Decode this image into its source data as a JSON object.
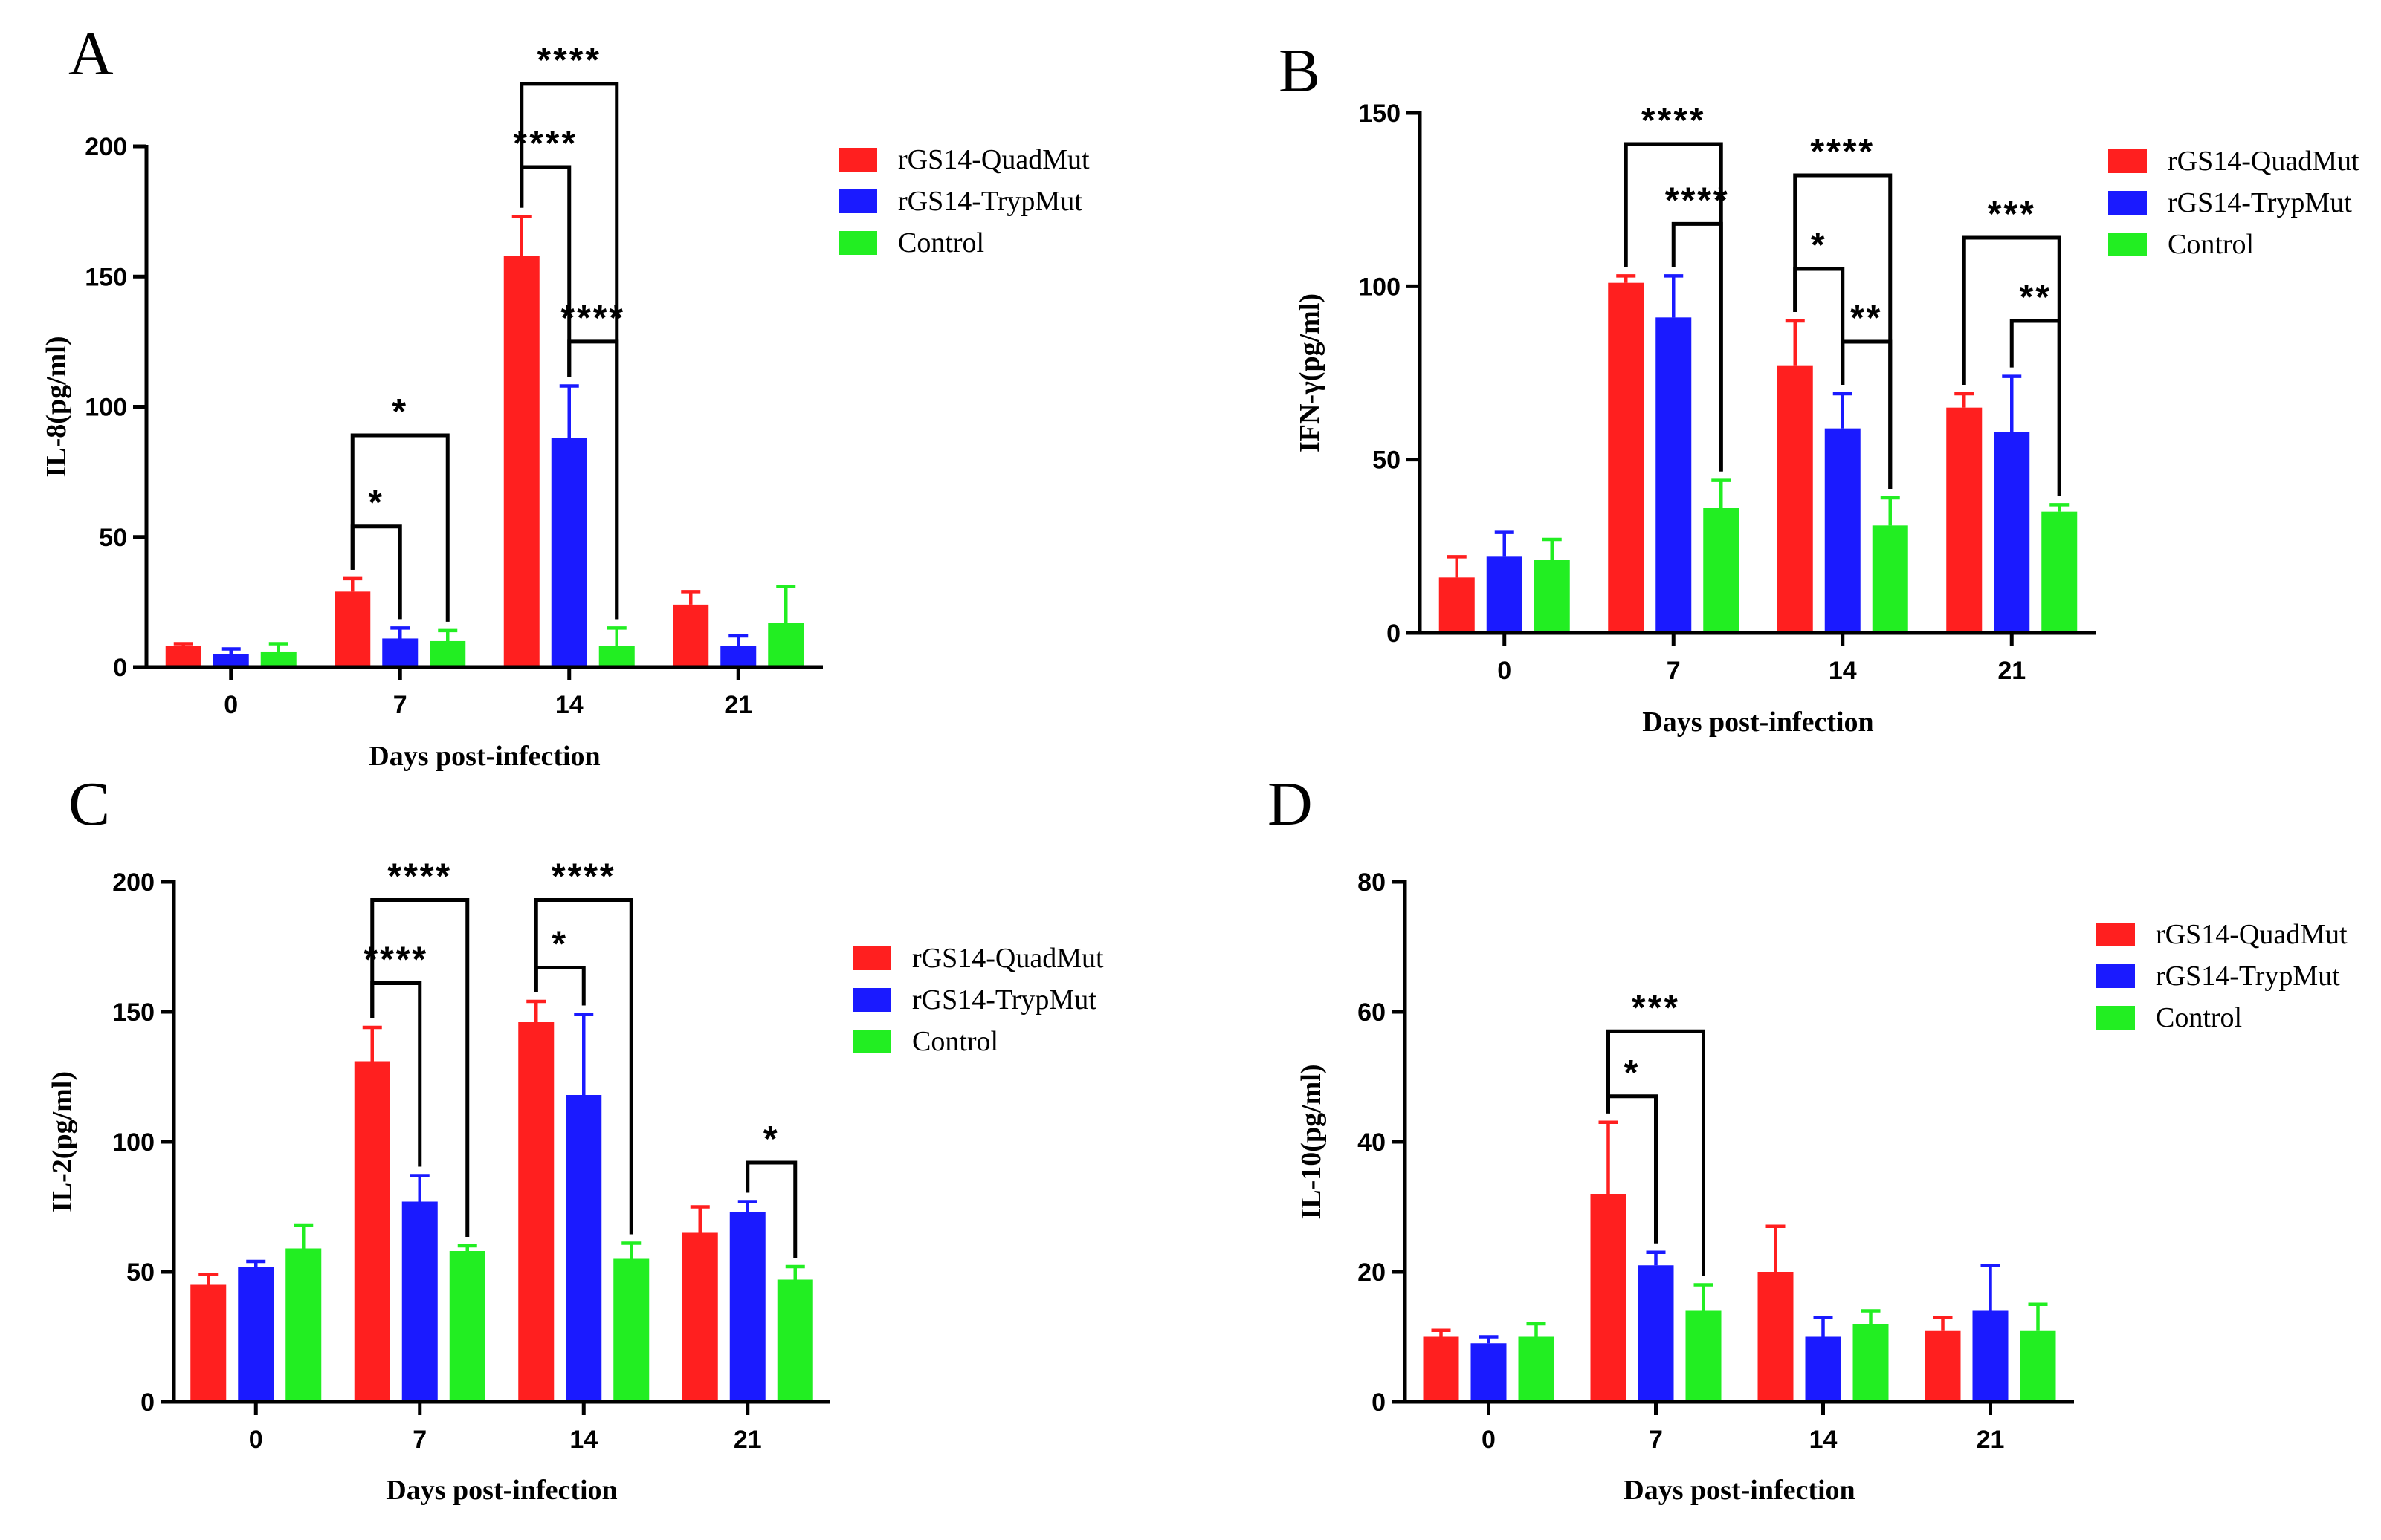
{
  "legend": [
    "rGS14-QuadMut",
    "rGS14-TrypMut",
    "Control"
  ],
  "colors": [
    "#ff1f1f",
    "#1a1aff",
    "#22ee22"
  ],
  "chart_data": [
    {
      "panel": "A",
      "type": "bar",
      "ylabel": "IL-8(pg/ml)",
      "xlabel": "Days post-infection",
      "categories": [
        "0",
        "7",
        "14",
        "21"
      ],
      "ylim": [
        0,
        200
      ],
      "yticks": [
        0,
        50,
        100,
        150,
        200
      ],
      "series": [
        {
          "name": "rGS14-QuadMut",
          "values": [
            8,
            29,
            158,
            24
          ],
          "errors": [
            1,
            5,
            15,
            5
          ]
        },
        {
          "name": "rGS14-TrypMut",
          "values": [
            5,
            11,
            88,
            8
          ],
          "errors": [
            2,
            4,
            20,
            4
          ]
        },
        {
          "name": "Control",
          "values": [
            6,
            10,
            8,
            17
          ],
          "errors": [
            3,
            4,
            7,
            14
          ]
        }
      ],
      "significance": [
        {
          "group": 1,
          "from": 0,
          "to": 1,
          "label": "*",
          "top": 54
        },
        {
          "group": 1,
          "from": 0,
          "to": 2,
          "label": "*",
          "top": 89
        },
        {
          "group": 2,
          "from": 0,
          "to": 1,
          "label": "****",
          "top": 192
        },
        {
          "group": 2,
          "from": 1,
          "to": 2,
          "label": "****",
          "top": 125
        },
        {
          "group": 2,
          "from": 0,
          "to": 2,
          "label": "****",
          "top": 224
        }
      ]
    },
    {
      "panel": "B",
      "type": "bar",
      "ylabel": "IFN-γ(pg/ml)",
      "xlabel": "Days post-infection",
      "categories": [
        "0",
        "7",
        "14",
        "21"
      ],
      "ylim": [
        0,
        150
      ],
      "yticks": [
        0,
        50,
        100,
        150
      ],
      "series": [
        {
          "name": "rGS14-QuadMut",
          "values": [
            16,
            101,
            77,
            65
          ],
          "errors": [
            6,
            2,
            13,
            4
          ]
        },
        {
          "name": "rGS14-TrypMut",
          "values": [
            22,
            91,
            59,
            58
          ],
          "errors": [
            7,
            12,
            10,
            16
          ]
        },
        {
          "name": "Control",
          "values": [
            21,
            36,
            31,
            35
          ],
          "errors": [
            6,
            8,
            8,
            2
          ]
        }
      ],
      "significance": [
        {
          "group": 1,
          "from": 0,
          "to": 2,
          "label": "****",
          "top": 141
        },
        {
          "group": 1,
          "from": 1,
          "to": 2,
          "label": "****",
          "top": 118
        },
        {
          "group": 2,
          "from": 0,
          "to": 1,
          "label": "*",
          "top": 105
        },
        {
          "group": 2,
          "from": 1,
          "to": 2,
          "label": "**",
          "top": 84
        },
        {
          "group": 2,
          "from": 0,
          "to": 2,
          "label": "****",
          "top": 132
        },
        {
          "group": 3,
          "from": 0,
          "to": 2,
          "label": "***",
          "top": 114
        },
        {
          "group": 3,
          "from": 1,
          "to": 2,
          "label": "**",
          "top": 90
        }
      ]
    },
    {
      "panel": "C",
      "type": "bar",
      "ylabel": "IL-2(pg/ml)",
      "xlabel": "Days post-infection",
      "categories": [
        "0",
        "7",
        "14",
        "21"
      ],
      "ylim": [
        0,
        200
      ],
      "yticks": [
        0,
        50,
        100,
        150,
        200
      ],
      "series": [
        {
          "name": "rGS14-QuadMut",
          "values": [
            45,
            131,
            146,
            65
          ],
          "errors": [
            4,
            13,
            8,
            10
          ]
        },
        {
          "name": "rGS14-TrypMut",
          "values": [
            52,
            77,
            118,
            73
          ],
          "errors": [
            2,
            10,
            31,
            4
          ]
        },
        {
          "name": "Control",
          "values": [
            59,
            58,
            55,
            47
          ],
          "errors": [
            9,
            2,
            6,
            5
          ]
        }
      ],
      "significance": [
        {
          "group": 1,
          "from": 0,
          "to": 1,
          "label": "****",
          "top": 161
        },
        {
          "group": 1,
          "from": 0,
          "to": 2,
          "label": "****",
          "top": 193
        },
        {
          "group": 2,
          "from": 0,
          "to": 1,
          "label": "*",
          "top": 167
        },
        {
          "group": 2,
          "from": 0,
          "to": 2,
          "label": "****",
          "top": 193
        },
        {
          "group": 3,
          "from": 1,
          "to": 2,
          "label": "*",
          "top": 92
        }
      ]
    },
    {
      "panel": "D",
      "type": "bar",
      "ylabel": "IL-10(pg/ml)",
      "xlabel": "Days post-infection",
      "categories": [
        "0",
        "7",
        "14",
        "21"
      ],
      "ylim": [
        0,
        80
      ],
      "yticks": [
        0,
        20,
        40,
        60,
        80
      ],
      "series": [
        {
          "name": "rGS14-QuadMut",
          "values": [
            10,
            32,
            20,
            11
          ],
          "errors": [
            1,
            11,
            7,
            2
          ]
        },
        {
          "name": "rGS14-TrypMut",
          "values": [
            9,
            21,
            10,
            14
          ],
          "errors": [
            1,
            2,
            3,
            7
          ]
        },
        {
          "name": "Control",
          "values": [
            10,
            14,
            12,
            11
          ],
          "errors": [
            2,
            4,
            2,
            4
          ]
        }
      ],
      "significance": [
        {
          "group": 1,
          "from": 0,
          "to": 1,
          "label": "*",
          "top": 47
        },
        {
          "group": 1,
          "from": 0,
          "to": 2,
          "label": "***",
          "top": 57
        }
      ]
    }
  ]
}
